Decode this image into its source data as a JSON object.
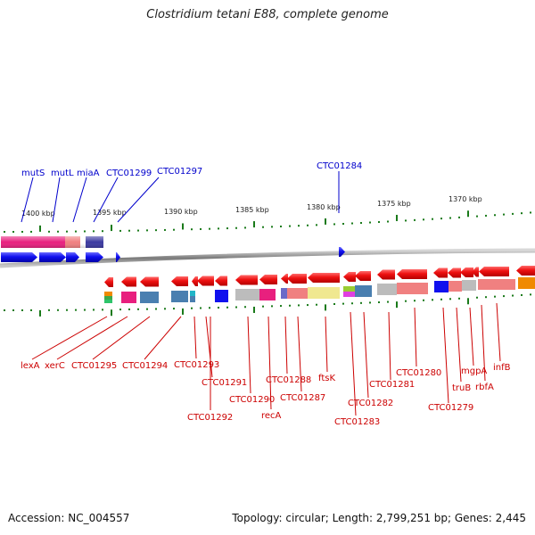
{
  "title": "Clostridium tetani E88, complete genome",
  "footer": {
    "accession": "Accession: NC_004557",
    "summary": "Topology: circular; Length: 2,799,251 bp; Genes: 2,445"
  },
  "colors": {
    "forward_strand_gene": "#1010ee",
    "reverse_strand_gene": "#ee1111",
    "label_forward": "#0000cc",
    "label_reverse": "#cc0000",
    "backbone": "#8a8a8a",
    "tick": "#1a7a1a"
  },
  "scale_labels": [
    "1400 kbp",
    "1395 kbp",
    "1390 kbp",
    "1385 kbp",
    "1380 kbp",
    "1375 kbp",
    "1370 kbp"
  ],
  "top_labels": [
    "mutS",
    "mutL",
    "miaA",
    "CTC01299",
    "CTC01297",
    "CTC01284"
  ],
  "bottom_labels": [
    "lexA",
    "xerC",
    "CTC01295",
    "CTC01294",
    "CTC01293",
    "CTC01291",
    "CTC01292",
    "CTC01290",
    "recA",
    "CTC01288",
    "CTC01287",
    "ftsK",
    "CTC01283",
    "CTC01282",
    "CTC01281",
    "CTC01280",
    "CTC01279",
    "truB",
    "mgpA",
    "rbfA",
    "infB"
  ]
}
